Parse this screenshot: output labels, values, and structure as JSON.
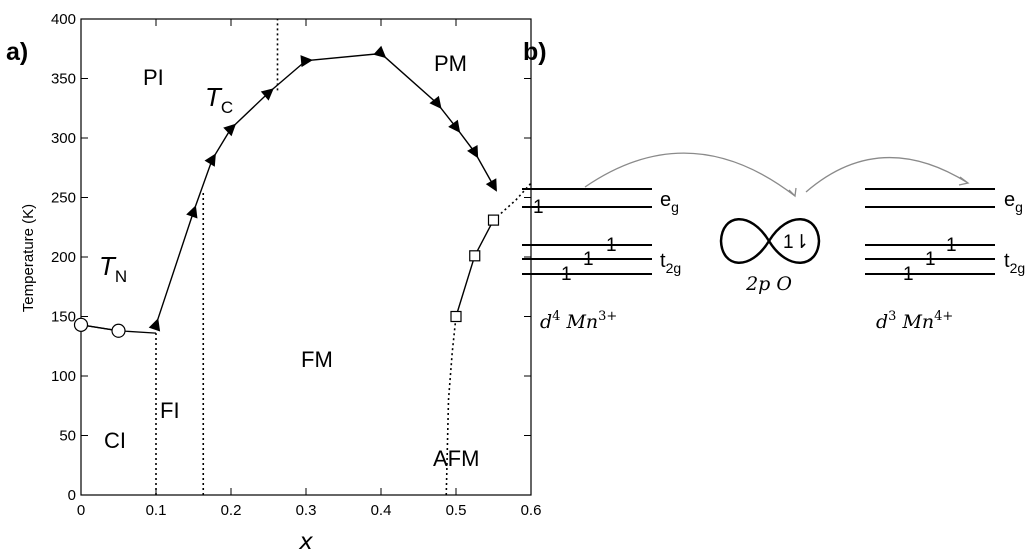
{
  "panel_a_label": "a)",
  "panel_b_label": "b)",
  "chart_data": {
    "type": "scatter",
    "xlabel": "x",
    "ylabel": "Temperature (K)",
    "xlim": [
      0,
      0.6
    ],
    "ylim": [
      0,
      400
    ],
    "x_ticks": [
      "0",
      "0.1",
      "0.2",
      "0.3",
      "0.4",
      "0.5",
      "0.6"
    ],
    "y_ticks": [
      "0",
      "50",
      "100",
      "150",
      "200",
      "250",
      "300",
      "350",
      "400"
    ],
    "grid": false,
    "curve_labels": {
      "tc": "T",
      "tc_sub": "C",
      "tn": "T",
      "tn_sub": "N"
    },
    "regions": {
      "pi": "PI",
      "pm": "PM",
      "fm": "FM",
      "fi": "FI",
      "ci": "CI",
      "afm": "AFM"
    },
    "series": [
      {
        "marker": "triangle",
        "line": "solid",
        "x": [
          0.1,
          0.15,
          0.175,
          0.2,
          0.25,
          0.3,
          0.4,
          0.475,
          0.5,
          0.525,
          0.55
        ],
        "y": [
          143,
          238,
          282,
          308,
          338,
          365,
          371,
          329,
          309,
          288,
          260
        ]
      },
      {
        "marker": "circle",
        "line": "solid",
        "x": [
          0,
          0.05
        ],
        "y": [
          143,
          138
        ]
      },
      {
        "marker": "square",
        "line": "solid",
        "x": [
          0.5,
          0.525,
          0.55
        ],
        "y": [
          150,
          201,
          231
        ]
      }
    ],
    "boundaries": [
      {
        "x": [
          0,
          0.05,
          0.1
        ],
        "y": [
          143,
          138,
          136
        ],
        "style": "solid"
      },
      {
        "x": [
          0.1,
          0.1
        ],
        "y": [
          0,
          136
        ],
        "style": "dotted"
      },
      {
        "x": [
          0.163,
          0.163
        ],
        "y": [
          0,
          255
        ],
        "style": "dotted"
      },
      {
        "x": [
          0.262,
          0.262
        ],
        "y": [
          340,
          400
        ],
        "style": "dotted"
      },
      {
        "x": [
          0.487,
          0.49,
          0.495,
          0.5
        ],
        "y": [
          0,
          80,
          120,
          150
        ],
        "style": "dotted"
      },
      {
        "x": [
          0.55,
          0.58,
          0.6
        ],
        "y": [
          231,
          248,
          262
        ],
        "style": "dotted"
      }
    ]
  },
  "diagram_b": {
    "eg": "e",
    "eg_sub": "g",
    "t2g": "t",
    "t2g_sub": "2g",
    "electron": "1",
    "oxygen_pair": "1⇂",
    "oxygen_label": "2p O",
    "left_ion": {
      "d": "d",
      "d_count": "4",
      "ion": "Mn",
      "charge": "3+"
    },
    "right_ion": {
      "d": "d",
      "d_count": "3",
      "ion": "Mn",
      "charge": "4+"
    }
  }
}
